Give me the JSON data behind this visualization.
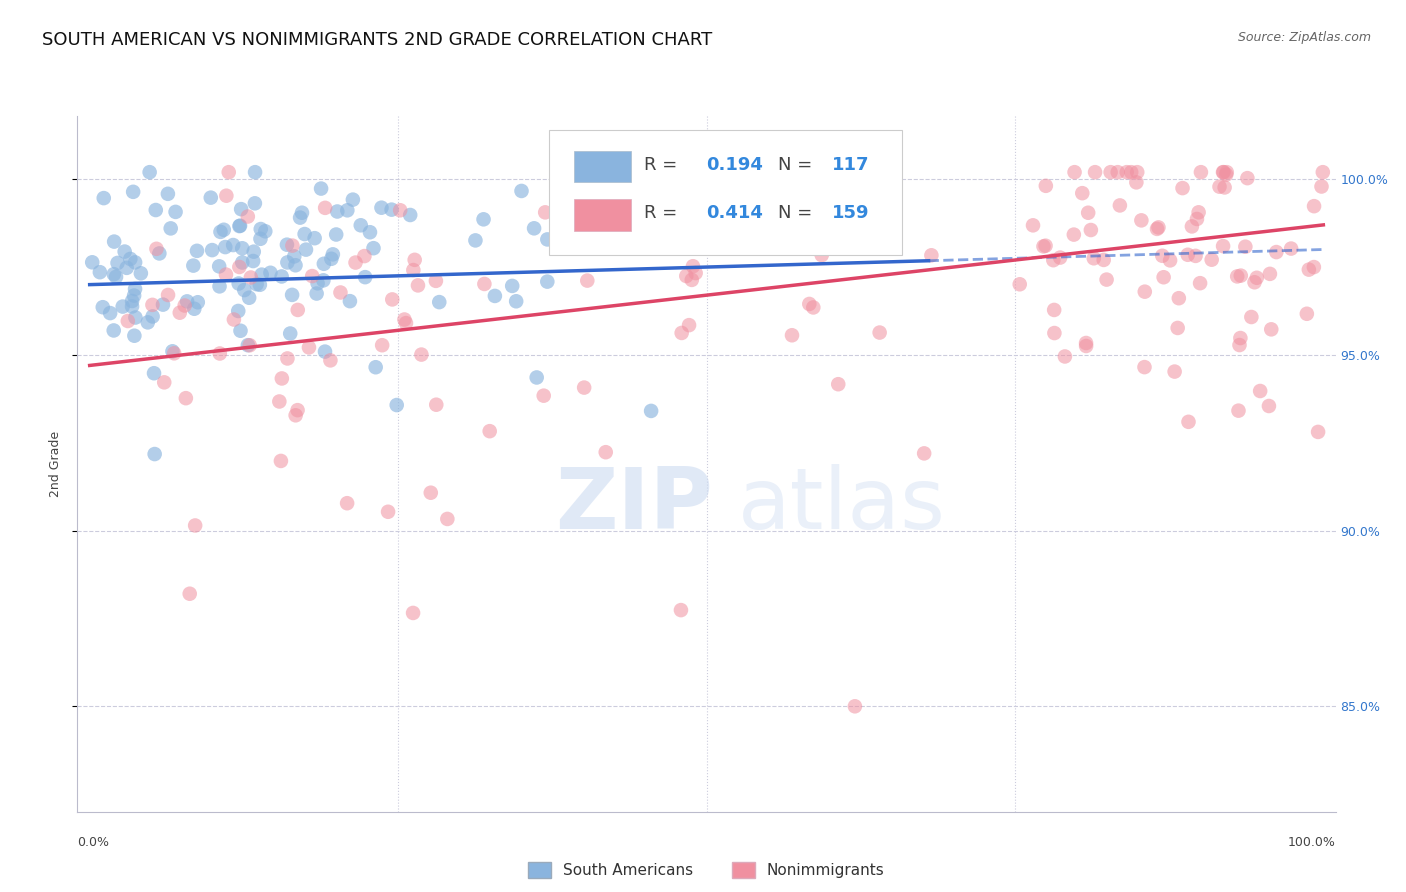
{
  "title": "SOUTH AMERICAN VS NONIMMIGRANTS 2ND GRADE CORRELATION CHART",
  "source": "Source: ZipAtlas.com",
  "ylabel": "2nd Grade",
  "ytick_labels": [
    "100.0%",
    "95.0%",
    "90.0%",
    "85.0%"
  ],
  "ytick_values": [
    1.0,
    0.95,
    0.9,
    0.85
  ],
  "ylim": [
    0.82,
    1.018
  ],
  "xlim": [
    -0.01,
    1.01
  ],
  "blue_R": 0.194,
  "blue_N": 117,
  "pink_R": 0.414,
  "pink_N": 159,
  "blue_color": "#8ab4de",
  "pink_color": "#f090a0",
  "blue_line_color": "#3366cc",
  "pink_line_color": "#dd4466",
  "blue_label": "South Americans",
  "pink_label": "Nonimmigrants",
  "r_color": "#3388dd",
  "background_color": "#ffffff",
  "grid_color": "#ccccdd",
  "title_fontsize": 13,
  "source_fontsize": 9,
  "axis_label_fontsize": 9,
  "tick_fontsize": 9,
  "legend_fontsize": 13,
  "blue_seed": 12,
  "pink_seed": 99
}
